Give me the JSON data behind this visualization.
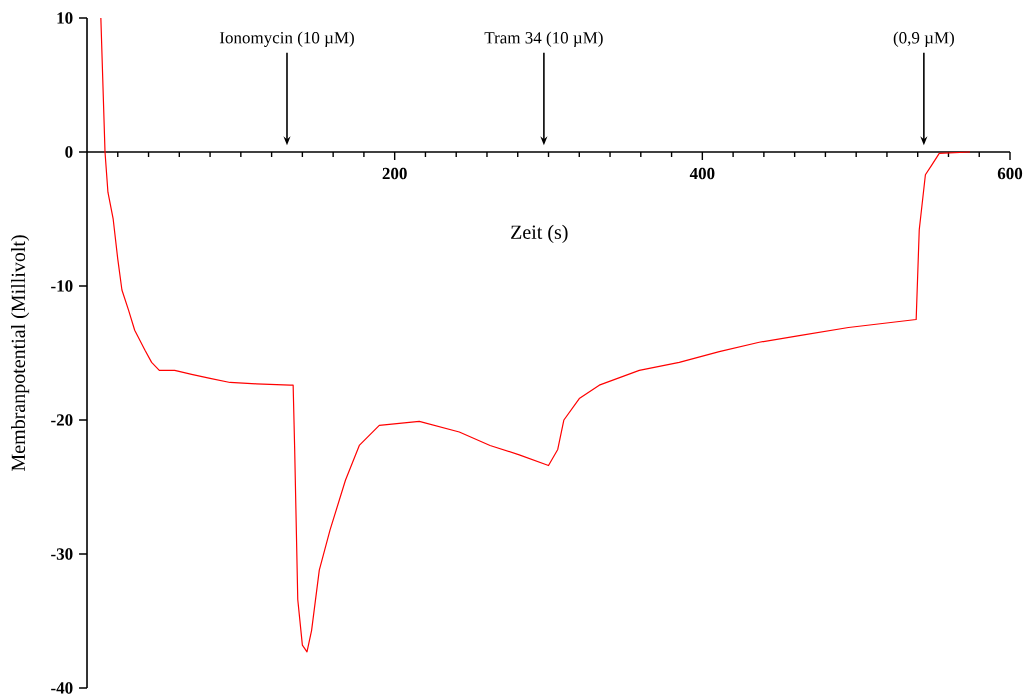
{
  "chart_data": {
    "type": "line",
    "xlabel": "Zeit (s)",
    "ylabel": "Membranpotential (Millivolt)",
    "xlim": [
      0,
      600
    ],
    "ylim": [
      -40,
      10
    ],
    "xticks": [
      {
        "value": 0,
        "label": null
      },
      200,
      400,
      600
    ],
    "yticks": [
      10,
      0,
      -10,
      -20,
      -30,
      -40
    ],
    "marker": "none",
    "line_style": "solid",
    "ref_lines": [
      {
        "axis": "x",
        "value": 130,
        "label": "Ionomycin (10 µM)"
      },
      {
        "axis": "x",
        "value": 297,
        "label": "Tram 34 (10 µM)"
      },
      {
        "axis": "x",
        "value": 544,
        "label": "(0,9 µM)"
      }
    ],
    "series": [
      {
        "color": "#ff0000",
        "x": [
          9,
          11.7,
          13.6,
          17,
          20,
          22.7,
          27,
          31,
          37.7,
          42,
          47,
          57,
          68,
          80,
          93,
          110,
          132,
          134,
          135,
          137,
          140,
          143,
          146,
          151,
          158,
          168,
          177,
          190,
          216,
          242,
          262,
          281,
          300,
          306,
          310,
          320,
          333,
          359,
          385,
          411,
          437,
          463,
          495,
          539,
          541,
          545,
          549,
          554,
          574
        ],
        "values": [
          10,
          0,
          -3,
          -5,
          -8,
          -10.3,
          -11.8,
          -13.3,
          -14.8,
          -15.7,
          -16.3,
          -16.3,
          -16.6,
          -16.9,
          -17.2,
          -17.3,
          -17.4,
          -17.4,
          -22.2,
          -33.4,
          -36.8,
          -37.3,
          -35.7,
          -31.2,
          -28.2,
          -24.5,
          -21.9,
          -20.4,
          -20.1,
          -20.9,
          -21.9,
          -22.6,
          -23.4,
          -22.2,
          -20,
          -18.4,
          -17.4,
          -16.3,
          -15.7,
          -14.9,
          -14.2,
          -13.7,
          -13.1,
          -12.5,
          -5.8,
          -1.7,
          -1,
          -0.1,
          0
        ]
      }
    ]
  }
}
